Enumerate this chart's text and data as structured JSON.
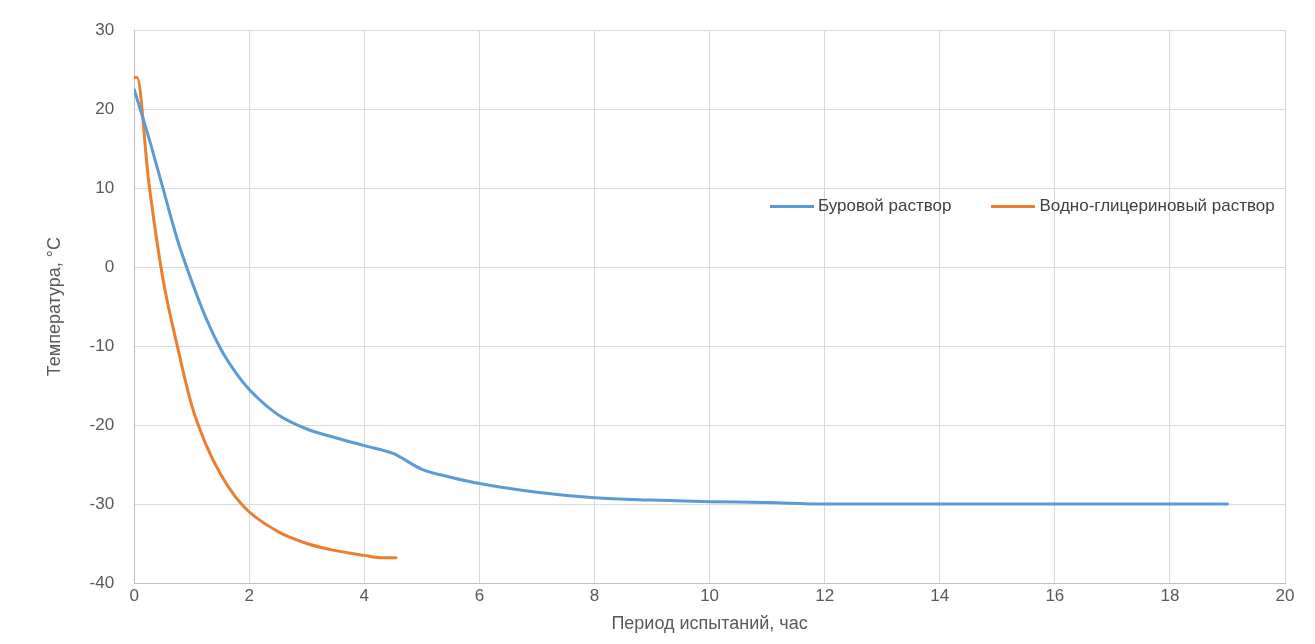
{
  "chart_data": {
    "type": "line",
    "xlabel": "Период испытаний, час",
    "ylabel": "Температура, °С",
    "xlim": [
      0,
      20
    ],
    "xticks": [
      0,
      2,
      4,
      6,
      8,
      10,
      12,
      14,
      16,
      18,
      20
    ],
    "ylim": [
      -40,
      30
    ],
    "yticks": [
      -40,
      -30,
      -20,
      -10,
      0,
      10,
      20,
      30
    ],
    "grid": true,
    "legend": "right",
    "marker": "none",
    "line_style": "solid",
    "series": [
      {
        "name": "Буровой раствор",
        "color": "#5b9bd5",
        "x": [
          0,
          0.25,
          0.5,
          0.75,
          1,
          1.25,
          1.5,
          1.75,
          2,
          2.5,
          3,
          3.5,
          4,
          4.5,
          5,
          5.5,
          6,
          7,
          8,
          9,
          10,
          11,
          12,
          14,
          16,
          18,
          19
        ],
        "values": [
          22.5,
          16.5,
          10,
          3.5,
          -1.8,
          -6.5,
          -10.3,
          -13.2,
          -15.5,
          -18.7,
          -20.5,
          -21.6,
          -22.6,
          -23.6,
          -25.6,
          -26.6,
          -27.4,
          -28.5,
          -29.2,
          -29.5,
          -29.7,
          -29.8,
          -30,
          -30,
          -30,
          -30,
          -30
        ]
      },
      {
        "name": "Водно-глицериновый раствор",
        "color": "#ed7d31",
        "x": [
          0,
          0.05,
          0.25,
          0.5,
          0.75,
          1,
          1.25,
          1.5,
          1.75,
          2,
          2.5,
          3,
          3.5,
          4,
          4.3,
          4.55
        ],
        "values": [
          24,
          24,
          11,
          -1.5,
          -10,
          -17.5,
          -22.5,
          -26.2,
          -29,
          -31,
          -33.5,
          -35,
          -35.9,
          -36.5,
          -36.8,
          -36.8
        ]
      }
    ]
  }
}
